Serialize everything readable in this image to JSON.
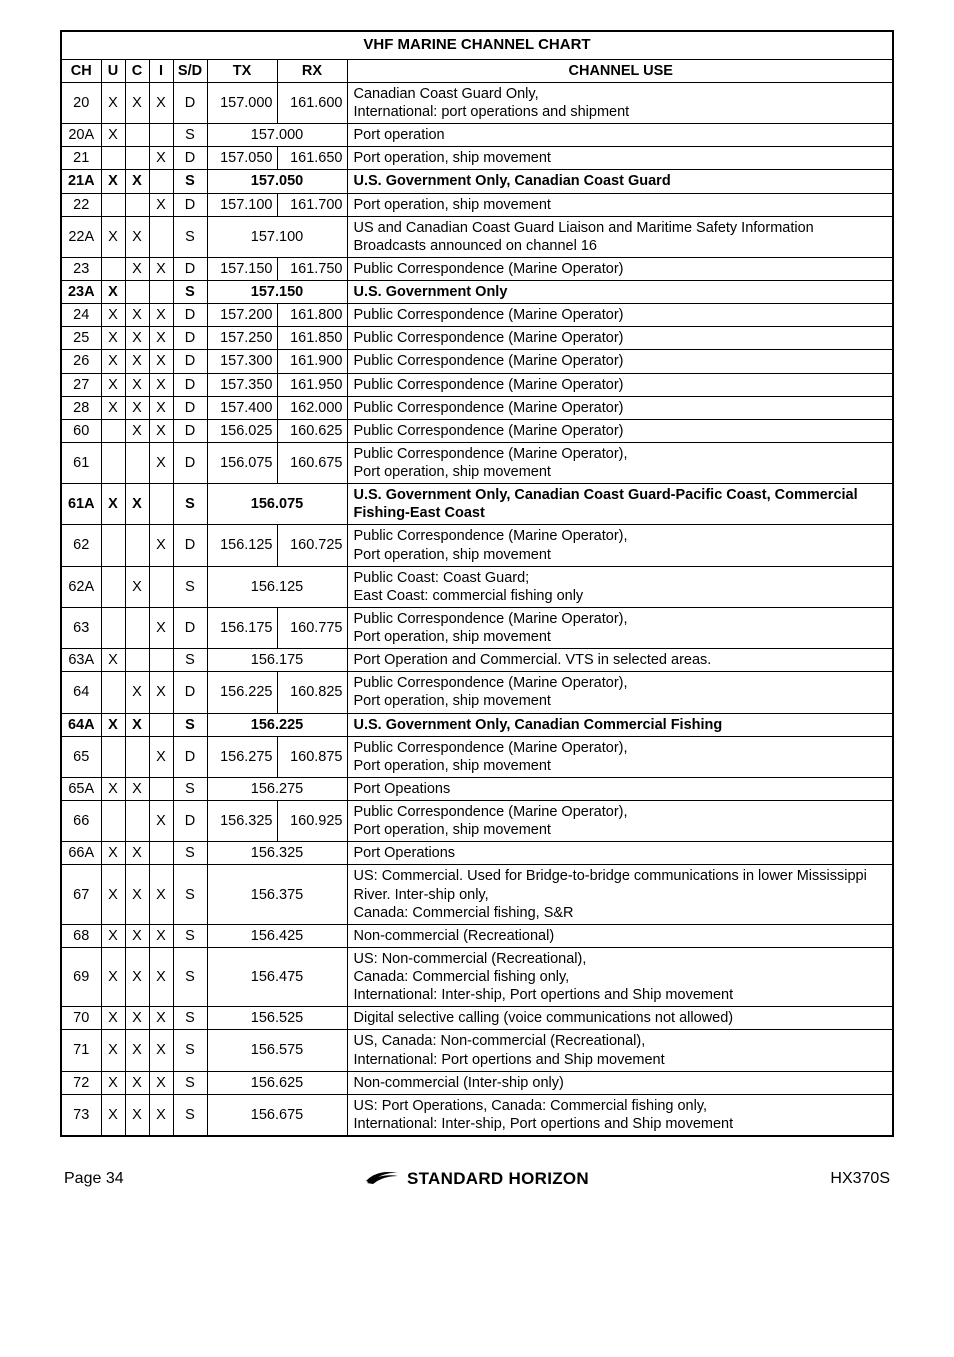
{
  "table": {
    "title": "VHF MARINE CHANNEL CHART",
    "headers": {
      "ch": "CH",
      "u": "U",
      "c": "C",
      "i": "I",
      "sd": "S/D",
      "tx": "TX",
      "rx": "RX",
      "use": "CHANNEL USE"
    },
    "rows": [
      {
        "ch": "20",
        "u": "X",
        "c": "X",
        "i": "X",
        "sd": "D",
        "tx": "157.000",
        "rx": "161.600",
        "use": "Canadian Coast Guard Only,\nInternational: port operations and shipment",
        "bold": false,
        "merge": false
      },
      {
        "ch": "20A",
        "u": "X",
        "c": "",
        "i": "",
        "sd": "S",
        "freq": "157.000",
        "use": "Port operation",
        "bold": false,
        "merge": true
      },
      {
        "ch": "21",
        "u": "",
        "c": "",
        "i": "X",
        "sd": "D",
        "tx": "157.050",
        "rx": "161.650",
        "use": "Port operation, ship movement",
        "bold": false,
        "merge": false
      },
      {
        "ch": "21A",
        "u": "X",
        "c": "X",
        "i": "",
        "sd": "S",
        "freq": "157.050",
        "use": "U.S. Government Only, Canadian Coast Guard",
        "bold": true,
        "merge": true
      },
      {
        "ch": "22",
        "u": "",
        "c": "",
        "i": "X",
        "sd": "D",
        "tx": "157.100",
        "rx": "161.700",
        "use": "Port operation, ship movement",
        "bold": false,
        "merge": false
      },
      {
        "ch": "22A",
        "u": "X",
        "c": "X",
        "i": "",
        "sd": "S",
        "freq": "157.100",
        "use": "US and Canadian Coast Guard Liaison and Maritime Safety Information Broadcasts announced on channel 16",
        "bold": false,
        "merge": true
      },
      {
        "ch": "23",
        "u": "",
        "c": "X",
        "i": "X",
        "sd": "D",
        "tx": "157.150",
        "rx": "161.750",
        "use": "Public Correspondence (Marine Operator)",
        "bold": false,
        "merge": false
      },
      {
        "ch": "23A",
        "u": "X",
        "c": "",
        "i": "",
        "sd": "S",
        "freq": "157.150",
        "use": "U.S. Government Only",
        "bold": true,
        "merge": true
      },
      {
        "ch": "24",
        "u": "X",
        "c": "X",
        "i": "X",
        "sd": "D",
        "tx": "157.200",
        "rx": "161.800",
        "use": "Public Correspondence (Marine Operator)",
        "bold": false,
        "merge": false
      },
      {
        "ch": "25",
        "u": "X",
        "c": "X",
        "i": "X",
        "sd": "D",
        "tx": "157.250",
        "rx": "161.850",
        "use": "Public Correspondence (Marine Operator)",
        "bold": false,
        "merge": false
      },
      {
        "ch": "26",
        "u": "X",
        "c": "X",
        "i": "X",
        "sd": "D",
        "tx": "157.300",
        "rx": "161.900",
        "use": "Public Correspondence (Marine Operator)",
        "bold": false,
        "merge": false
      },
      {
        "ch": "27",
        "u": "X",
        "c": "X",
        "i": "X",
        "sd": "D",
        "tx": "157.350",
        "rx": "161.950",
        "use": "Public Correspondence (Marine Operator)",
        "bold": false,
        "merge": false
      },
      {
        "ch": "28",
        "u": "X",
        "c": "X",
        "i": "X",
        "sd": "D",
        "tx": "157.400",
        "rx": "162.000",
        "use": "Public Correspondence (Marine Operator)",
        "bold": false,
        "merge": false
      },
      {
        "ch": "60",
        "u": "",
        "c": "X",
        "i": "X",
        "sd": "D",
        "tx": "156.025",
        "rx": "160.625",
        "use": "Public Correspondence (Marine Operator)",
        "bold": false,
        "merge": false
      },
      {
        "ch": "61",
        "u": "",
        "c": "",
        "i": "X",
        "sd": "D",
        "tx": "156.075",
        "rx": "160.675",
        "use": "Public Correspondence (Marine Operator),\nPort operation, ship movement",
        "bold": false,
        "merge": false
      },
      {
        "ch": "61A",
        "u": "X",
        "c": "X",
        "i": "",
        "sd": "S",
        "freq": "156.075",
        "use": "U.S. Government Only, Canadian Coast Guard-Pacific Coast, Commercial Fishing-East Coast",
        "bold": true,
        "merge": true
      },
      {
        "ch": "62",
        "u": "",
        "c": "",
        "i": "X",
        "sd": "D",
        "tx": "156.125",
        "rx": "160.725",
        "use": "Public Correspondence (Marine Operator),\nPort operation, ship movement",
        "bold": false,
        "merge": false
      },
      {
        "ch": "62A",
        "u": "",
        "c": "X",
        "i": "",
        "sd": "S",
        "freq": "156.125",
        "use": "Public Coast: Coast Guard;\nEast Coast: commercial fishing only",
        "bold": false,
        "merge": true
      },
      {
        "ch": "63",
        "u": "",
        "c": "",
        "i": "X",
        "sd": "D",
        "tx": "156.175",
        "rx": "160.775",
        "use": "Public Correspondence (Marine Operator),\nPort operation, ship movement",
        "bold": false,
        "merge": false
      },
      {
        "ch": "63A",
        "u": "X",
        "c": "",
        "i": "",
        "sd": "S",
        "freq": "156.175",
        "use": "Port Operation and Commercial. VTS in selected areas.",
        "bold": false,
        "merge": true
      },
      {
        "ch": "64",
        "u": "",
        "c": "X",
        "i": "X",
        "sd": "D",
        "tx": "156.225",
        "rx": "160.825",
        "use": "Public Correspondence (Marine Operator),\nPort operation, ship movement",
        "bold": false,
        "merge": false
      },
      {
        "ch": "64A",
        "u": "X",
        "c": "X",
        "i": "",
        "sd": "S",
        "freq": "156.225",
        "use": "U.S. Government Only, Canadian Commercial Fishing",
        "bold": true,
        "merge": true
      },
      {
        "ch": "65",
        "u": "",
        "c": "",
        "i": "X",
        "sd": "D",
        "tx": "156.275",
        "rx": "160.875",
        "use": "Public Correspondence (Marine Operator),\nPort operation, ship movement",
        "bold": false,
        "merge": false
      },
      {
        "ch": "65A",
        "u": "X",
        "c": "X",
        "i": "",
        "sd": "S",
        "freq": "156.275",
        "use": "Port Opeations",
        "bold": false,
        "merge": true
      },
      {
        "ch": "66",
        "u": "",
        "c": "",
        "i": "X",
        "sd": "D",
        "tx": "156.325",
        "rx": "160.925",
        "use": "Public Correspondence (Marine Operator),\nPort operation, ship movement",
        "bold": false,
        "merge": false
      },
      {
        "ch": "66A",
        "u": "X",
        "c": "X",
        "i": "",
        "sd": "S",
        "freq": "156.325",
        "use": "Port Operations",
        "bold": false,
        "merge": true
      },
      {
        "ch": "67",
        "u": "X",
        "c": "X",
        "i": "X",
        "sd": "S",
        "freq": "156.375",
        "use": "US: Commercial. Used for Bridge-to-bridge communications in lower Mississippi River. Inter-ship only,\nCanada: Commercial fishing, S&R",
        "bold": false,
        "merge": true
      },
      {
        "ch": "68",
        "u": "X",
        "c": "X",
        "i": "X",
        "sd": "S",
        "freq": "156.425",
        "use": "Non-commercial (Recreational)",
        "bold": false,
        "merge": true
      },
      {
        "ch": "69",
        "u": "X",
        "c": "X",
        "i": "X",
        "sd": "S",
        "freq": "156.475",
        "use": "US: Non-commercial (Recreational),\nCanada: Commercial fishing only,\nInternational: Inter-ship, Port opertions and Ship movement",
        "bold": false,
        "merge": true
      },
      {
        "ch": "70",
        "u": "X",
        "c": "X",
        "i": "X",
        "sd": "S",
        "freq": "156.525",
        "use": "Digital selective calling (voice communications not allowed)",
        "bold": false,
        "merge": true
      },
      {
        "ch": "71",
        "u": "X",
        "c": "X",
        "i": "X",
        "sd": "S",
        "freq": "156.575",
        "use": "US, Canada: Non-commercial (Recreational),\nInternational: Port opertions and Ship movement",
        "bold": false,
        "merge": true
      },
      {
        "ch": "72",
        "u": "X",
        "c": "X",
        "i": "X",
        "sd": "S",
        "freq": "156.625",
        "use": "Non-commercial (Inter-ship only)",
        "bold": false,
        "merge": true
      },
      {
        "ch": "73",
        "u": "X",
        "c": "X",
        "i": "X",
        "sd": "S",
        "freq": "156.675",
        "use": "US: Port Operations, Canada: Commercial fishing only,\nInternational: Inter-ship, Port opertions and Ship movement",
        "bold": false,
        "merge": true
      }
    ]
  },
  "footer": {
    "page_label": "Page 34",
    "brand": "STANDARD HORIZON",
    "model": "HX370S"
  }
}
